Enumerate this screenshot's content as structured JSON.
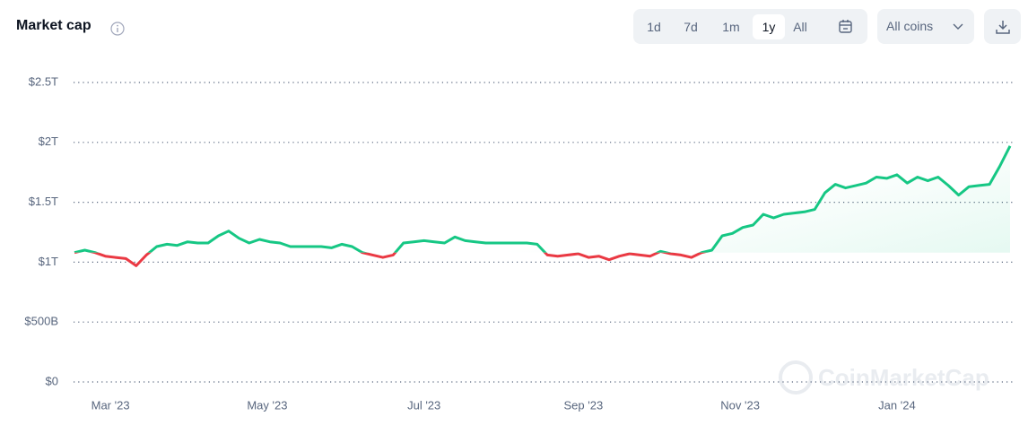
{
  "chart_data": {
    "type": "line",
    "title": "Market cap",
    "values": [
      1080,
      1100,
      1080,
      1050,
      1040,
      1030,
      970,
      1060,
      1130,
      1150,
      1140,
      1170,
      1160,
      1160,
      1220,
      1260,
      1200,
      1160,
      1190,
      1170,
      1160,
      1130,
      1130,
      1130,
      1130,
      1120,
      1150,
      1130,
      1080,
      1060,
      1040,
      1060,
      1160,
      1170,
      1180,
      1170,
      1160,
      1210,
      1180,
      1170,
      1160,
      1160,
      1160,
      1160,
      1160,
      1150,
      1060,
      1050,
      1060,
      1070,
      1040,
      1050,
      1020,
      1050,
      1070,
      1060,
      1050,
      1090,
      1070,
      1060,
      1040,
      1080,
      1100,
      1220,
      1240,
      1290,
      1310,
      1400,
      1370,
      1400,
      1410,
      1420,
      1440,
      1580,
      1650,
      1620,
      1640,
      1660,
      1710,
      1700,
      1730,
      1660,
      1710,
      1680,
      1710,
      1640,
      1560,
      1630,
      1640,
      1650,
      1800,
      1970
    ],
    "xlim": [
      0,
      91
    ],
    "xticks": [
      {
        "value": 3.5,
        "label": "Mar '23"
      },
      {
        "value": 18.75,
        "label": "May '23"
      },
      {
        "value": 34,
        "label": "Jul '23"
      },
      {
        "value": 49.5,
        "label": "Sep '23"
      },
      {
        "value": 64.75,
        "label": "Nov '23"
      },
      {
        "value": 80,
        "label": "Jan '24"
      }
    ],
    "ylim": [
      0,
      2500
    ],
    "yticks": [
      {
        "value": 0,
        "label": "$0"
      },
      {
        "value": 500,
        "label": "$500B"
      },
      {
        "value": 1000,
        "label": "$1T"
      },
      {
        "value": 1500,
        "label": "$1.5T"
      },
      {
        "value": 2000,
        "label": "$2T"
      },
      {
        "value": 2500,
        "label": "$2.5T"
      }
    ],
    "grid": true,
    "up_color": "#16c784",
    "down_color": "#ea3943",
    "watermark": "CoinMarketCap"
  },
  "controls": {
    "ranges": [
      "1d",
      "7d",
      "1m",
      "1y",
      "All"
    ],
    "selected_range": "1y",
    "coin_filter": "All coins"
  }
}
